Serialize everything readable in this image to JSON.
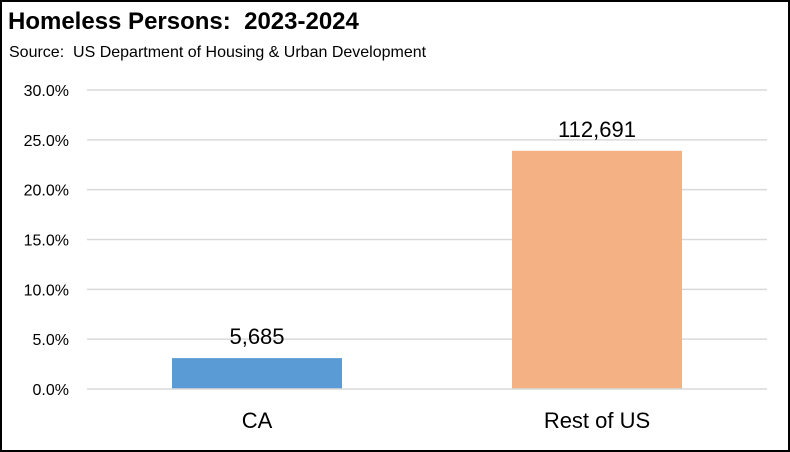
{
  "chart_data": {
    "type": "bar",
    "title": "Homeless Persons:  2023-2024",
    "subtitle": "Source:  US Department of Housing & Urban Development",
    "categories": [
      "CA",
      "Rest of US"
    ],
    "values": [
      3.1,
      23.9
    ],
    "data_labels": [
      "5,685",
      "112,691"
    ],
    "bar_colors": [
      "#5B9BD5",
      "#F4B183"
    ],
    "ylim": [
      0,
      30
    ],
    "yticks": [
      0,
      5,
      10,
      15,
      20,
      25,
      30
    ],
    "ytick_labels": [
      "0.0%",
      "5.0%",
      "10.0%",
      "15.0%",
      "20.0%",
      "25.0%",
      "30.0%"
    ],
    "grid": true,
    "gridline_color": "#d9d9d9",
    "legend": "none"
  }
}
